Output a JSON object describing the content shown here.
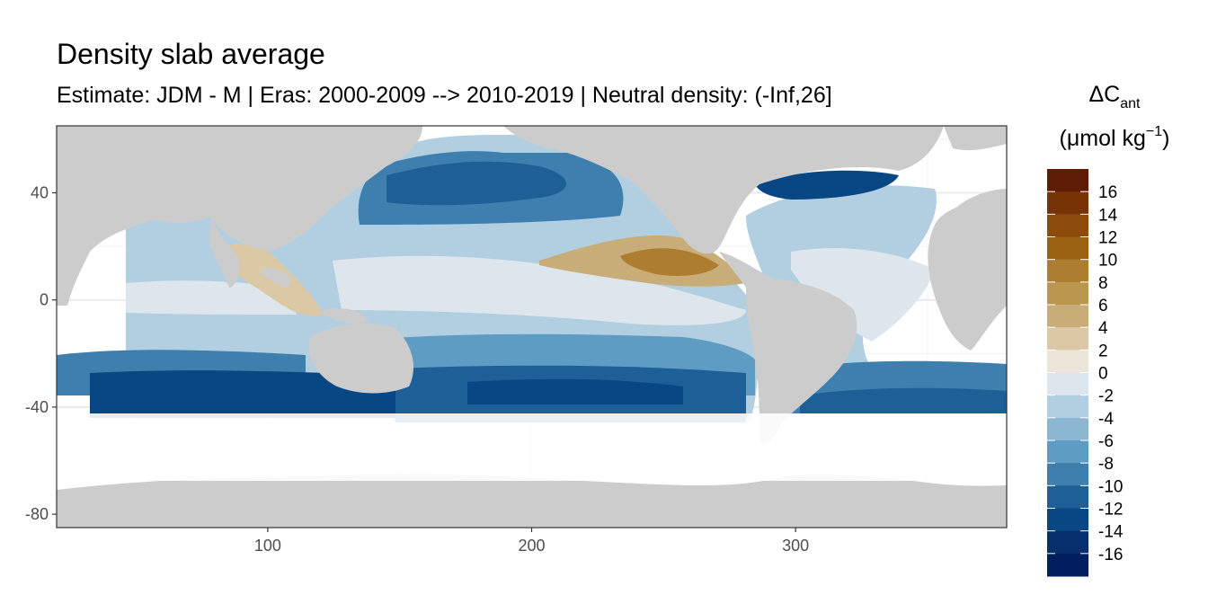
{
  "chart_data": {
    "type": "heatmap",
    "title": "Density slab average",
    "subtitle": "Estimate: JDM - M | Eras: 2000-2009 --> 2010-2019 | Neutral density: (-Inf,26]",
    "xlabel": "",
    "ylabel": "",
    "xlim": [
      20,
      380
    ],
    "ylim": [
      -85,
      65
    ],
    "x_ticks": [
      100,
      200,
      300
    ],
    "y_ticks": [
      40,
      0,
      -40,
      -80
    ],
    "grid": true,
    "legend": {
      "placement": "right",
      "title_main": "ΔC",
      "title_sub": "ant",
      "title_unit_open": "(μmol kg",
      "title_unit_sup": "−1",
      "title_unit_close": ")",
      "labels": [
        "16",
        "14",
        "12",
        "10",
        "8",
        "6",
        "4",
        "2",
        "0",
        "-2",
        "-4",
        "-6",
        "-8",
        "-10",
        "-12",
        "-14",
        "-16"
      ],
      "colors": [
        "#5e1c05",
        "#773206",
        "#8c4a0b",
        "#9b6113",
        "#ad7d30",
        "#bb964f",
        "#c9ad78",
        "#dbc9a6",
        "#ece6da",
        "#dde6ec",
        "#b2cfe1",
        "#8cb7d3",
        "#5f9cc3",
        "#3e7fae",
        "#1d6097",
        "#084783",
        "#06306d",
        "#031e5e"
      ]
    },
    "land_color": "#cccccc",
    "ocean_bins": [
      {
        "value": -14,
        "region": "north-pacific-subpolar"
      },
      {
        "value": -10,
        "region": "north-pacific-midlat"
      },
      {
        "value": -2,
        "region": "equatorial-pacific"
      },
      {
        "value": 6,
        "region": "eastern-tropical-pacific"
      },
      {
        "value": -12,
        "region": "southern-ocean-band"
      },
      {
        "value": -14,
        "region": "north-atlantic-subpolar"
      },
      {
        "value": -4,
        "region": "indian-ocean-tropical"
      },
      {
        "value": 4,
        "region": "indonesian-seas"
      }
    ]
  }
}
